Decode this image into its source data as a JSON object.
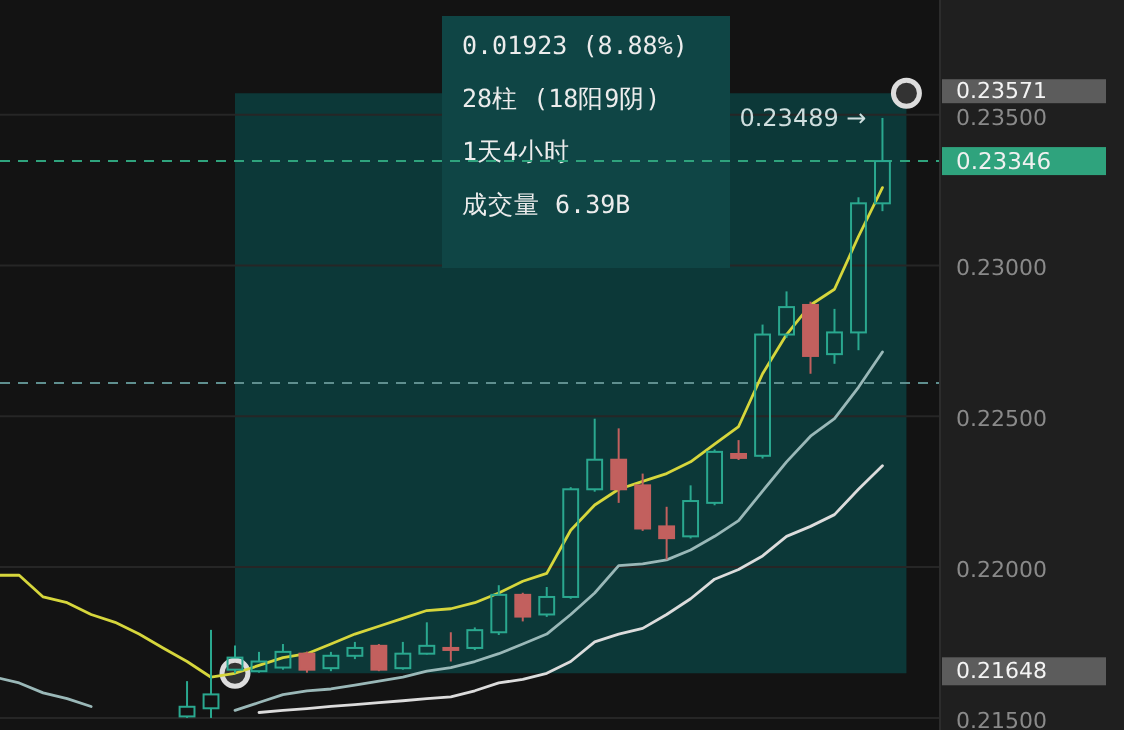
{
  "chart_data": {
    "type": "candlestick",
    "categories": [
      null,
      null,
      null,
      null,
      null,
      null,
      null,
      null,
      null,
      null,
      null,
      null,
      null,
      null,
      null,
      null,
      null,
      null,
      null,
      null,
      null,
      null,
      null,
      null,
      null,
      null,
      null,
      null,
      null,
      null,
      null,
      null,
      null,
      null,
      null,
      null,
      null,
      null,
      null
    ],
    "ohlc": [
      null,
      null,
      null,
      null,
      null,
      null,
      null,
      null,
      [
        0.21505,
        0.21622,
        0.215,
        0.21537
      ],
      [
        0.21532,
        0.21792,
        0.215,
        0.21578
      ],
      [
        0.2166,
        0.2174,
        0.21648,
        0.217
      ],
      [
        0.21655,
        0.21719,
        0.2165,
        0.21687
      ],
      [
        0.21667,
        0.21745,
        0.2166,
        0.21719
      ],
      [
        0.21713,
        0.2172,
        0.2165,
        0.2166
      ],
      [
        0.21665,
        0.21719,
        0.21655,
        0.21706
      ],
      [
        0.21706,
        0.21752,
        0.21695,
        0.21732
      ],
      [
        0.21739,
        0.21745,
        0.21655,
        0.2166
      ],
      [
        0.21665,
        0.21752,
        0.2166,
        0.21713
      ],
      [
        0.21713,
        0.21817,
        0.2171,
        0.21739
      ],
      [
        0.21732,
        0.21784,
        0.21687,
        0.21728
      ],
      [
        0.21732,
        0.218,
        0.21725,
        0.21791
      ],
      [
        0.21784,
        0.2194,
        0.21775,
        0.21908
      ],
      [
        0.21908,
        0.21915,
        0.2182,
        0.21836
      ],
      [
        0.21843,
        0.21934,
        0.21835,
        0.21901
      ],
      [
        0.21901,
        0.22265,
        0.21895,
        0.22258
      ],
      [
        0.22258,
        0.22492,
        0.2225,
        0.22356
      ],
      [
        0.22356,
        0.2246,
        0.22213,
        0.22258
      ],
      [
        0.22271,
        0.2231,
        0.2212,
        0.22128
      ],
      [
        0.22135,
        0.222,
        0.22025,
        0.22096
      ],
      [
        0.22102,
        0.22271,
        0.22095,
        0.22219
      ],
      [
        0.22213,
        0.2239,
        0.22205,
        0.22382
      ],
      [
        0.22375,
        0.22421,
        0.22355,
        0.22362
      ],
      [
        0.22369,
        0.22804,
        0.2236,
        0.22771
      ],
      [
        0.22771,
        0.22914,
        0.2276,
        0.22862
      ],
      [
        0.22869,
        0.2288,
        0.22641,
        0.227
      ],
      [
        0.22706,
        0.22856,
        0.22674,
        0.22778
      ],
      [
        0.22778,
        0.23226,
        0.22719,
        0.23206
      ],
      [
        0.23206,
        0.23489,
        0.2318,
        0.23346
      ],
      null
    ],
    "colors": [
      null,
      null,
      null,
      null,
      null,
      null,
      null,
      null,
      "#2aa88f",
      "#2aa88f",
      "#2aa88f",
      "#2aa88f",
      "#2aa88f",
      "#c2605e",
      "#2aa88f",
      "#2aa88f",
      "#c2605e",
      "#2aa88f",
      "#2aa88f",
      "#c2605e",
      "#2aa88f",
      "#2aa88f",
      "#c2605e",
      "#2aa88f",
      "#2aa88f",
      "#2aa88f",
      "#c2605e",
      "#c2605e",
      "#c2605e",
      "#2aa88f",
      "#2aa88f",
      "#c2605e",
      "#2aa88f",
      "#2aa88f",
      "#c2605e",
      "#2aa88f",
      "#2aa88f",
      "#2aa88f",
      null
    ],
    "series": [
      {
        "type": "line",
        "color": "#d6d63c",
        "values": [
          0.21973,
          0.21973,
          0.21901,
          0.21882,
          0.21843,
          0.21817,
          0.21778,
          0.21732,
          0.21687,
          0.21635,
          0.21648,
          0.21674,
          0.217,
          0.21713,
          0.21745,
          0.21778,
          0.21804,
          0.2183,
          0.21856,
          0.21862,
          0.21882,
          0.21914,
          0.21953,
          0.21979,
          0.22122,
          0.22206,
          0.22258,
          0.22284,
          0.2231,
          0.22349,
          0.22408,
          0.22466,
          0.22641,
          0.22771,
          0.22869,
          0.22921,
          0.23096,
          0.23258,
          null
        ]
      },
      {
        "type": "scatter",
        "color": "#dddddd",
        "marker": "circle",
        "values": [
          null,
          null,
          null,
          null,
          null,
          null,
          null,
          null,
          null,
          null,
          0.21648,
          null,
          null,
          null,
          null,
          null,
          null,
          null,
          null,
          null,
          null,
          null,
          null,
          null,
          null,
          null,
          null,
          null,
          null,
          null,
          null,
          null,
          null,
          null,
          null,
          null,
          null,
          null,
          0.23571
        ]
      },
      {
        "type": "line",
        "color": "#9ab8b8",
        "values": [
          0.21635,
          0.21616,
          0.21583,
          0.21564,
          0.21538,
          null,
          null,
          null,
          null,
          null,
          0.21525,
          0.21551,
          0.21577,
          0.2159,
          0.21596,
          0.21609,
          0.21622,
          0.21635,
          0.21655,
          0.21667,
          0.21687,
          0.21713,
          0.21745,
          0.21778,
          0.21843,
          0.21914,
          0.22005,
          0.22011,
          0.22024,
          0.22057,
          0.22102,
          0.22154,
          0.22252,
          0.22349,
          0.22434,
          0.22492,
          0.22596,
          0.22713,
          null
        ]
      },
      {
        "type": "line",
        "color": "#dcdcdc",
        "values": [
          null,
          null,
          null,
          null,
          null,
          null,
          null,
          null,
          null,
          null,
          null,
          0.21518,
          0.21525,
          0.21531,
          0.21538,
          0.21544,
          0.21551,
          0.21557,
          0.21564,
          0.2157,
          0.2159,
          0.21616,
          0.21628,
          0.21648,
          0.21687,
          0.21752,
          0.21778,
          0.21797,
          0.21843,
          0.21895,
          0.2196,
          0.21992,
          0.22037,
          0.22102,
          0.22135,
          0.22174,
          0.22258,
          0.22336,
          null
        ]
      }
    ],
    "ylim": [
      0.2146,
      0.2388
    ],
    "yticks": [
      {
        "value": 0.215,
        "label": "0.21500"
      },
      {
        "value": 0.22,
        "label": "0.22000"
      },
      {
        "value": 0.225,
        "label": "0.22500"
      },
      {
        "value": 0.23,
        "label": "0.23000"
      },
      {
        "value": 0.235,
        "label": "0.23500"
      }
    ],
    "tick_labels": "y",
    "grid": "y",
    "bands": [
      {
        "axis": "y",
        "from": 0.21648,
        "to": 0.23571,
        "color": "#0c3838"
      }
    ],
    "ref_lines": [
      {
        "axis": "y",
        "value": 0.23346,
        "label": "0.23346",
        "color": "#2fa37d",
        "line_style": "dashed"
      },
      {
        "axis": "y",
        "value": 0.2261,
        "color": "#5f8f8f",
        "line_style": "dashed"
      }
    ],
    "annotations": [
      "0.01923 (8.88%)",
      "28柱 (18阳9阴)",
      "1天4小时",
      "成交量 6.39B",
      "0.23489 →",
      "0.23571",
      "0.21648"
    ]
  }
}
